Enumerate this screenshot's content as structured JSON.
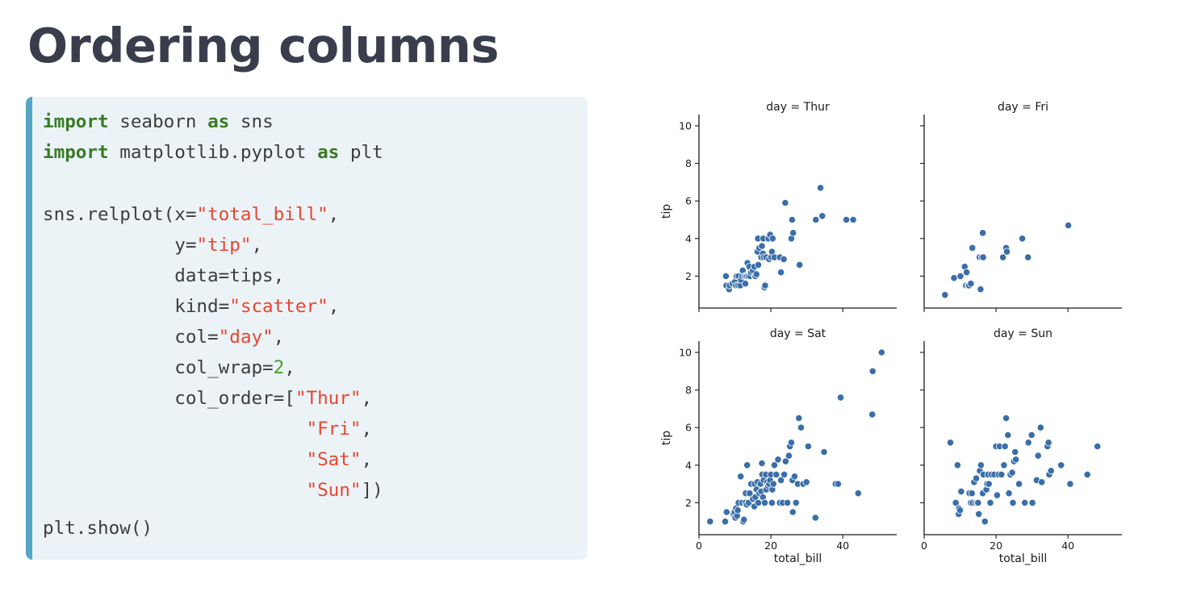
{
  "slide": {
    "title": "Ordering columns"
  },
  "code": [
    [
      {
        "t": "import",
        "c": "kw"
      },
      {
        "t": " seaborn "
      },
      {
        "t": "as",
        "c": "kw"
      },
      {
        "t": " sns"
      }
    ],
    [
      {
        "t": "import",
        "c": "kw"
      },
      {
        "t": " matplotlib.pyplot "
      },
      {
        "t": "as",
        "c": "kw"
      },
      {
        "t": " plt"
      }
    ],
    [],
    [
      {
        "t": "sns.relplot(x="
      },
      {
        "t": "\"total_bill\"",
        "c": "str"
      },
      {
        "t": ","
      }
    ],
    [
      {
        "t": "            y="
      },
      {
        "t": "\"tip\"",
        "c": "str"
      },
      {
        "t": ","
      }
    ],
    [
      {
        "t": "            data=tips,"
      }
    ],
    [
      {
        "t": "            kind="
      },
      {
        "t": "\"scatter\"",
        "c": "str"
      },
      {
        "t": ","
      }
    ],
    [
      {
        "t": "            col="
      },
      {
        "t": "\"day\"",
        "c": "str"
      },
      {
        "t": ","
      }
    ],
    [
      {
        "t": "            col_wrap="
      },
      {
        "t": "2",
        "c": "num"
      },
      {
        "t": ","
      }
    ],
    [
      {
        "t": "            col_order=["
      },
      {
        "t": "\"Thur\"",
        "c": "str"
      },
      {
        "t": ","
      }
    ],
    [
      {
        "t": "                        "
      },
      {
        "t": "\"Fri\"",
        "c": "str"
      },
      {
        "t": ","
      }
    ],
    [
      {
        "t": "                        "
      },
      {
        "t": "\"Sat\"",
        "c": "str"
      },
      {
        "t": ","
      }
    ],
    [
      {
        "t": "                        "
      },
      {
        "t": "\"Sun\"",
        "c": "str"
      },
      {
        "t": "])"
      }
    ],
    [
      {
        "t": "plt.show()"
      }
    ]
  ],
  "colors": {
    "point": "#3a6ea8",
    "point_edge": "#ffffff",
    "keyword": "#3a7a24",
    "string": "#e8452f",
    "number": "#4a9d2a",
    "accent": "#55a6c6"
  },
  "chart_data": {
    "type": "scatter",
    "xlabel": "total_bill",
    "ylabel": "tip",
    "xlim": [
      0,
      55
    ],
    "ylim": [
      0.3,
      10.6
    ],
    "xticks": [
      0,
      20,
      40
    ],
    "yticks": [
      2,
      4,
      6,
      8,
      10
    ],
    "panels": [
      {
        "title": "day = Thur",
        "points": [
          [
            7.5,
            2.0
          ],
          [
            7.6,
            1.5
          ],
          [
            8.4,
            1.3
          ],
          [
            8.5,
            1.5
          ],
          [
            9.3,
            1.6
          ],
          [
            10,
            1.7
          ],
          [
            10.3,
            2.0
          ],
          [
            10.3,
            1.5
          ],
          [
            10.5,
            2.0
          ],
          [
            10.9,
            1.5
          ],
          [
            11,
            2.0
          ],
          [
            11.5,
            1.5
          ],
          [
            11.7,
            1.8
          ],
          [
            12,
            2.0
          ],
          [
            12.2,
            2.3
          ],
          [
            12.7,
            2.0
          ],
          [
            12.9,
            1.6
          ],
          [
            13,
            2.0
          ],
          [
            13.4,
            2.0
          ],
          [
            13.5,
            2.7
          ],
          [
            13.8,
            2.0
          ],
          [
            14,
            2.5
          ],
          [
            14.3,
            2.0
          ],
          [
            14.5,
            2.2
          ],
          [
            15,
            2.3
          ],
          [
            15.4,
            2.5
          ],
          [
            15.5,
            2.0
          ],
          [
            15.7,
            2.0
          ],
          [
            16,
            2.1
          ],
          [
            16.3,
            3.3
          ],
          [
            16.4,
            4.0
          ],
          [
            16.5,
            2.6
          ],
          [
            16.8,
            3.5
          ],
          [
            17.3,
            3.0
          ],
          [
            17.5,
            3.6
          ],
          [
            17.8,
            3.2
          ],
          [
            17.9,
            4.0
          ],
          [
            18,
            3.0
          ],
          [
            18.2,
            1.4
          ],
          [
            18.4,
            1.5
          ],
          [
            18.7,
            3.0
          ],
          [
            19.3,
            4.0
          ],
          [
            19.5,
            2.9
          ],
          [
            19.8,
            4.2
          ],
          [
            20.1,
            3.0
          ],
          [
            20.3,
            3.3
          ],
          [
            20.5,
            4.0
          ],
          [
            21,
            3.0
          ],
          [
            22.5,
            3.0
          ],
          [
            22.8,
            2.2
          ],
          [
            23.6,
            2.9
          ],
          [
            24,
            5.9
          ],
          [
            25.7,
            4.0
          ],
          [
            25.9,
            5.0
          ],
          [
            26.2,
            4.3
          ],
          [
            28,
            2.6
          ],
          [
            32.5,
            5.0
          ],
          [
            33.8,
            6.7
          ],
          [
            34.3,
            5.2
          ],
          [
            41,
            5.0
          ],
          [
            42.9,
            5.0
          ]
        ]
      },
      {
        "title": "day = Fri",
        "points": [
          [
            5.8,
            1.0
          ],
          [
            8.3,
            1.9
          ],
          [
            10.1,
            2.0
          ],
          [
            11.3,
            2.5
          ],
          [
            11.6,
            1.5
          ],
          [
            11.8,
            2.2
          ],
          [
            12.2,
            1.5
          ],
          [
            12.5,
            1.5
          ],
          [
            13,
            1.6
          ],
          [
            13.4,
            3.5
          ],
          [
            15.4,
            3.0
          ],
          [
            15.7,
            1.3
          ],
          [
            16,
            3.0
          ],
          [
            16.3,
            4.3
          ],
          [
            16.4,
            3.0
          ],
          [
            21.9,
            3.0
          ],
          [
            22.8,
            3.5
          ],
          [
            23,
            3.3
          ],
          [
            27.3,
            4.0
          ],
          [
            28.9,
            3.0
          ],
          [
            40.1,
            4.7
          ]
        ]
      },
      {
        "title": "day = Sat",
        "points": [
          [
            3.1,
            1.0
          ],
          [
            7.3,
            1.0
          ],
          [
            7.7,
            1.5
          ],
          [
            9.6,
            1.4
          ],
          [
            9.9,
            1.5
          ],
          [
            10.1,
            1.2
          ],
          [
            10.3,
            1.7
          ],
          [
            10.6,
            1.3
          ],
          [
            10.8,
            1.6
          ],
          [
            11.0,
            2.0
          ],
          [
            11.6,
            3.4
          ],
          [
            12.0,
            2.0
          ],
          [
            12.3,
            1.0
          ],
          [
            12.5,
            1.1
          ],
          [
            12.9,
            2.0
          ],
          [
            13.0,
            2.5
          ],
          [
            13.3,
            1.9
          ],
          [
            13.4,
            4.0
          ],
          [
            13.8,
            2.0
          ],
          [
            14.1,
            2.5
          ],
          [
            14.5,
            3.0
          ],
          [
            15.0,
            2.2
          ],
          [
            15.4,
            1.8
          ],
          [
            15.5,
            3.0
          ],
          [
            15.7,
            2.3
          ],
          [
            16.0,
            2.7
          ],
          [
            16.3,
            3.1
          ],
          [
            16.5,
            2.0
          ],
          [
            16.8,
            2.5
          ],
          [
            17.1,
            3.0
          ],
          [
            17.3,
            2.6
          ],
          [
            17.5,
            4.1
          ],
          [
            17.6,
            3.5
          ],
          [
            17.8,
            2.3
          ],
          [
            18.0,
            3.2
          ],
          [
            18.3,
            2.0
          ],
          [
            18.6,
            3.5
          ],
          [
            18.7,
            2.7
          ],
          [
            19.0,
            3.1
          ],
          [
            19.2,
            2.9
          ],
          [
            19.5,
            3.0
          ],
          [
            19.8,
            3.2
          ],
          [
            20.0,
            3.5
          ],
          [
            20.3,
            2.0
          ],
          [
            20.4,
            2.7
          ],
          [
            20.7,
            3.0
          ],
          [
            21.0,
            4.0
          ],
          [
            21.5,
            3.5
          ],
          [
            22.0,
            4.3
          ],
          [
            22.5,
            2.0
          ],
          [
            22.8,
            3.2
          ],
          [
            23.3,
            2.0
          ],
          [
            23.7,
            3.5
          ],
          [
            24.1,
            4.2
          ],
          [
            24.6,
            2.0
          ],
          [
            25.0,
            4.5
          ],
          [
            25.3,
            5.0
          ],
          [
            25.7,
            5.2
          ],
          [
            26.0,
            3.2
          ],
          [
            26.1,
            1.5
          ],
          [
            26.6,
            3.4
          ],
          [
            27.0,
            2.0
          ],
          [
            27.5,
            3.0
          ],
          [
            27.8,
            6.5
          ],
          [
            28.4,
            6.0
          ],
          [
            29.0,
            3.0
          ],
          [
            29.9,
            3.1
          ],
          [
            30.4,
            5.0
          ],
          [
            32.4,
            1.2
          ],
          [
            34.8,
            4.7
          ],
          [
            38.0,
            3.0
          ],
          [
            38.7,
            3.0
          ],
          [
            39.4,
            7.6
          ],
          [
            44.3,
            2.5
          ],
          [
            48.2,
            6.7
          ],
          [
            48.3,
            9.0
          ],
          [
            50.8,
            10.0
          ]
        ]
      },
      {
        "title": "day = Sun",
        "points": [
          [
            7.3,
            5.2
          ],
          [
            8.8,
            2.0
          ],
          [
            9.3,
            4.0
          ],
          [
            9.6,
            1.4
          ],
          [
            9.7,
            1.7
          ],
          [
            10.0,
            1.6
          ],
          [
            10.3,
            2.6
          ],
          [
            12.6,
            2.5
          ],
          [
            13.0,
            2.0
          ],
          [
            13.3,
            2.5
          ],
          [
            13.5,
            2.0
          ],
          [
            13.9,
            3.1
          ],
          [
            14.3,
            2.0
          ],
          [
            14.5,
            3.3
          ],
          [
            14.8,
            2.0
          ],
          [
            15.0,
            2.0
          ],
          [
            15.2,
            1.4
          ],
          [
            15.5,
            3.7
          ],
          [
            15.8,
            4.0
          ],
          [
            16.3,
            2.5
          ],
          [
            16.5,
            3.5
          ],
          [
            16.9,
            1.0
          ],
          [
            17.3,
            2.7
          ],
          [
            17.5,
            3.0
          ],
          [
            17.8,
            3.5
          ],
          [
            18.0,
            3.0
          ],
          [
            18.4,
            2.0
          ],
          [
            18.7,
            3.5
          ],
          [
            19.5,
            3.5
          ],
          [
            20.0,
            5.0
          ],
          [
            20.3,
            2.4
          ],
          [
            20.7,
            3.5
          ],
          [
            21.0,
            5.0
          ],
          [
            21.5,
            3.5
          ],
          [
            22.2,
            4.0
          ],
          [
            22.5,
            5.0
          ],
          [
            22.8,
            6.5
          ],
          [
            23.3,
            5.6
          ],
          [
            23.6,
            2.5
          ],
          [
            24.0,
            3.5
          ],
          [
            24.5,
            3.6
          ],
          [
            24.7,
            2.0
          ],
          [
            25.0,
            4.2
          ],
          [
            25.3,
            4.7
          ],
          [
            25.5,
            4.3
          ],
          [
            26.4,
            3.0
          ],
          [
            28.0,
            2.0
          ],
          [
            29.0,
            5.2
          ],
          [
            29.9,
            5.6
          ],
          [
            30.1,
            2.0
          ],
          [
            31.3,
            3.2
          ],
          [
            31.7,
            4.5
          ],
          [
            32.4,
            6.0
          ],
          [
            32.7,
            3.1
          ],
          [
            34.3,
            5.0
          ],
          [
            34.6,
            5.2
          ],
          [
            34.8,
            3.5
          ],
          [
            35.3,
            3.7
          ],
          [
            38.1,
            4.0
          ],
          [
            40.6,
            3.0
          ],
          [
            45.4,
            3.5
          ],
          [
            48.2,
            5.0
          ]
        ]
      }
    ]
  }
}
